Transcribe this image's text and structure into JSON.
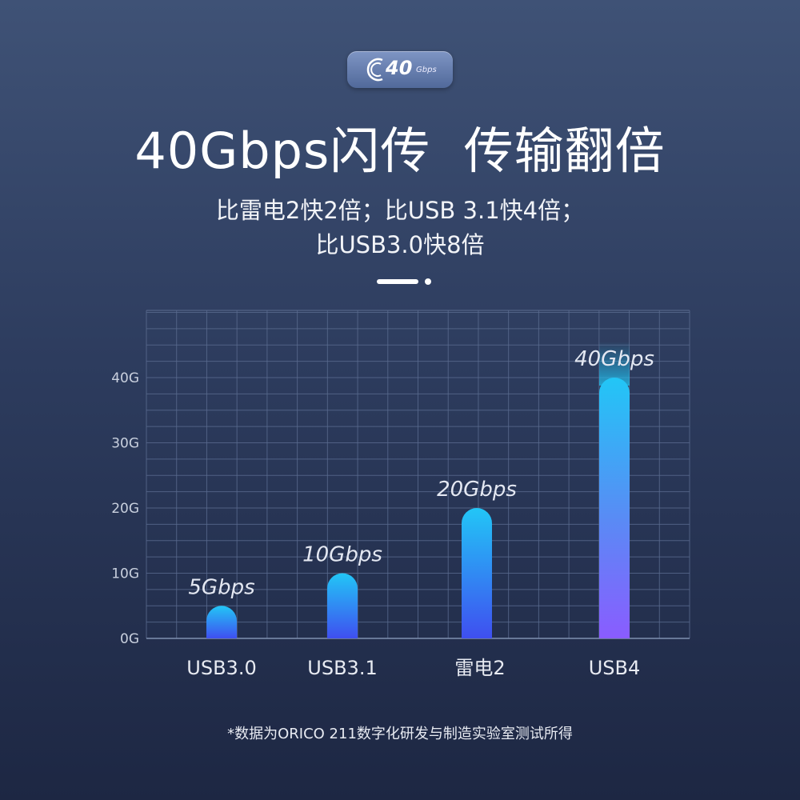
{
  "badge": {
    "number": "40",
    "unit": "Gbps",
    "icon": "cable-connector-icon"
  },
  "headline": "40Gbps闪传  传输翻倍",
  "subtitle_line1": "比雷电2快2倍；比USB 3.1快4倍；",
  "subtitle_line2": "比USB3.0快8倍",
  "footnote": "*数据为ORICO 211数字化研发与制造实验室测试所得",
  "colors": {
    "bar_top": "#22c6f6",
    "bar_bottom_blue": "#3f4ff0",
    "bar_bottom_purple": "#8a5cff",
    "grid": "#5a6b8f"
  },
  "chart_data": {
    "type": "bar",
    "categories": [
      "USB3.0",
      "USB3.1",
      "雷电2",
      "USB4"
    ],
    "values": [
      5,
      10,
      20,
      40
    ],
    "data_labels": [
      "5Gbps",
      "10Gbps",
      "20Gbps",
      "40Gbps"
    ],
    "yticks": [
      "0G",
      "10G",
      "20G",
      "30G",
      "40G"
    ],
    "ytick_values": [
      0,
      10,
      20,
      30,
      40
    ],
    "ylim": [
      0,
      50
    ],
    "grid": true,
    "title": "",
    "xlabel": "",
    "ylabel": ""
  }
}
